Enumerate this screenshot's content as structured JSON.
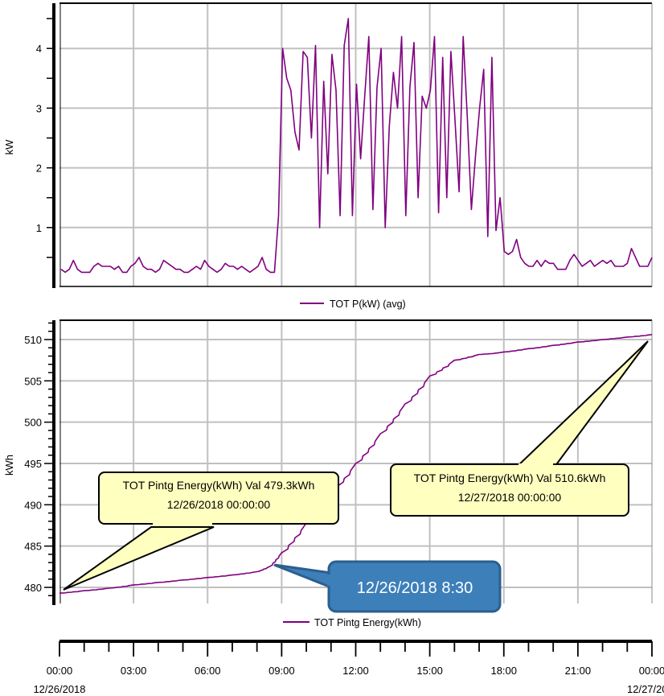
{
  "colors": {
    "series": "#800080",
    "grid": "#c0c0c0",
    "axis": "#000000",
    "callout_fill": "#ffffc0",
    "callout_border": "#000000",
    "blue_fill": "#3c7fb9",
    "blue_border": "#2b5f8e",
    "blue_text": "#ffffff"
  },
  "top_chart": {
    "ylabel": "kW",
    "y_ticks": [
      "1",
      "2",
      "3",
      "4"
    ],
    "legend": "TOT P(kW) (avg)"
  },
  "bottom_chart": {
    "ylabel": "kWh",
    "y_ticks": [
      "480",
      "485",
      "490",
      "495",
      "500",
      "505",
      "510"
    ],
    "legend": "TOT Pintg Energy(kWh)",
    "callout_start": {
      "line1": "TOT Pintg Energy(kWh) Val 479.3kWh",
      "line2": "12/26/2018 00:00:00"
    },
    "callout_end": {
      "line1": "TOT Pintg Energy(kWh) Val 510.6kWh",
      "line2": "12/27/2018 00:00:00"
    },
    "annotation": "12/26/2018 8:30"
  },
  "x_axis": {
    "ticks": [
      "00:00",
      "03:00",
      "06:00",
      "09:00",
      "12:00",
      "15:00",
      "18:00",
      "21:00",
      "00:00"
    ],
    "start_date": "12/26/2018",
    "end_date": "12/27/20"
  },
  "chart_data": [
    {
      "type": "line",
      "title": "",
      "xlabel": "",
      "ylabel": "kW",
      "legend": [
        "TOT P(kW) (avg)"
      ],
      "legend_position": "bottom",
      "grid": true,
      "ylim": [
        0,
        4.7
      ],
      "x_range": [
        "12/26/2018 00:00",
        "12/27/2018 00:00"
      ],
      "x_step_minutes": 15,
      "series": [
        {
          "name": "TOT P(kW) (avg)",
          "values": [
            0.3,
            0.25,
            0.3,
            0.45,
            0.3,
            0.25,
            0.25,
            0.25,
            0.35,
            0.4,
            0.35,
            0.35,
            0.35,
            0.3,
            0.35,
            0.25,
            0.25,
            0.35,
            0.4,
            0.5,
            0.35,
            0.3,
            0.3,
            0.25,
            0.3,
            0.45,
            0.4,
            0.35,
            0.3,
            0.3,
            0.25,
            0.25,
            0.3,
            0.35,
            0.3,
            0.45,
            0.35,
            0.3,
            0.25,
            0.3,
            0.4,
            0.35,
            0.35,
            0.3,
            0.35,
            0.3,
            0.25,
            0.3,
            0.35,
            0.5,
            0.3,
            0.25,
            0.25,
            1.2,
            4.0,
            3.5,
            3.3,
            2.6,
            2.3,
            3.95,
            3.85,
            2.5,
            4.05,
            1.0,
            3.45,
            1.9,
            3.9,
            3.3,
            1.2,
            4.05,
            4.5,
            1.2,
            3.4,
            2.15,
            3.2,
            4.2,
            1.3,
            3.35,
            4.0,
            1.0,
            2.7,
            3.6,
            3.0,
            4.2,
            1.2,
            3.35,
            4.1,
            1.5,
            3.2,
            3.0,
            3.3,
            4.2,
            1.25,
            3.85,
            1.5,
            3.95,
            2.8,
            1.6,
            4.2,
            2.85,
            1.3,
            2.2,
            3.0,
            3.65,
            0.85,
            3.85,
            0.95,
            1.5,
            0.6,
            0.55,
            0.6,
            0.8,
            0.5,
            0.4,
            0.35,
            0.35,
            0.45,
            0.35,
            0.45,
            0.4,
            0.4,
            0.3,
            0.3,
            0.3,
            0.45,
            0.55,
            0.45,
            0.35,
            0.4,
            0.45,
            0.35,
            0.4,
            0.45,
            0.4,
            0.45,
            0.35,
            0.35,
            0.35,
            0.4,
            0.65,
            0.5,
            0.35,
            0.35,
            0.35,
            0.5
          ]
        }
      ]
    },
    {
      "type": "line",
      "title": "",
      "xlabel": "",
      "ylabel": "kWh",
      "legend": [
        "TOT Pintg Energy(kWh)"
      ],
      "legend_position": "bottom",
      "grid": true,
      "ylim": [
        477.5,
        512
      ],
      "x": [
        "00:00",
        "01:00",
        "02:00",
        "03:00",
        "04:00",
        "05:00",
        "06:00",
        "07:00",
        "08:00",
        "08:30",
        "09:00",
        "10:00",
        "11:00",
        "12:00",
        "13:00",
        "14:00",
        "15:00",
        "16:00",
        "17:00",
        "17:30",
        "18:00",
        "19:00",
        "20:00",
        "21:00",
        "22:00",
        "23:00",
        "24:00"
      ],
      "series": [
        {
          "name": "TOT Pintg Energy(kWh)",
          "values": [
            479.3,
            479.6,
            479.9,
            480.3,
            480.6,
            480.9,
            481.2,
            481.5,
            481.9,
            482.5,
            484.2,
            487.8,
            491.4,
            495.0,
            498.6,
            502.2,
            505.6,
            507.5,
            508.2,
            508.3,
            508.5,
            508.9,
            509.3,
            509.7,
            510.0,
            510.3,
            510.6
          ]
        }
      ],
      "annotations": [
        {
          "text": "TOT Pintg Energy(kWh) Val 479.3kWh 12/26/2018 00:00:00",
          "x": "00:00",
          "y": 479.3
        },
        {
          "text": "TOT Pintg Energy(kWh) Val 510.6kWh 12/27/2018 00:00:00",
          "x": "24:00",
          "y": 510.6
        },
        {
          "text": "12/26/2018 8:30",
          "x": "08:30",
          "y": 482.5
        }
      ]
    }
  ]
}
